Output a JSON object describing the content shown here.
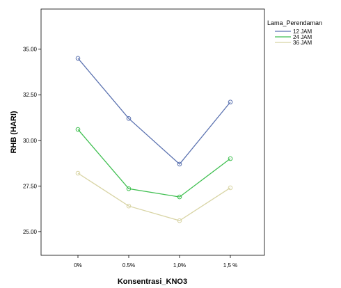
{
  "chart_data": {
    "type": "line",
    "title": "",
    "xlabel": "Konsentrasi_KNO3",
    "ylabel": "RHB (HARI)",
    "categories": [
      "0%",
      "0.5%",
      "1,0%",
      "1,5 %"
    ],
    "ylim": [
      23.7,
      37.2
    ],
    "yticks": [
      25.0,
      27.5,
      30.0,
      32.5,
      35.0
    ],
    "ytick_labels": [
      "25.00",
      "27.50",
      "30.00",
      "32.50",
      "35.00"
    ],
    "grid": false,
    "legend": {
      "title": "Lama_Perendaman",
      "placement": "right"
    },
    "series": [
      {
        "name": "12 JAM",
        "color": "#5b72b0",
        "values": [
          34.5,
          31.2,
          28.7,
          32.1
        ]
      },
      {
        "name": "24 JAM",
        "color": "#3fbf50",
        "values": [
          30.6,
          27.35,
          26.9,
          29.0
        ]
      },
      {
        "name": "36 JAM",
        "color": "#d8d4a4",
        "values": [
          28.2,
          26.4,
          25.6,
          27.4
        ]
      }
    ]
  }
}
